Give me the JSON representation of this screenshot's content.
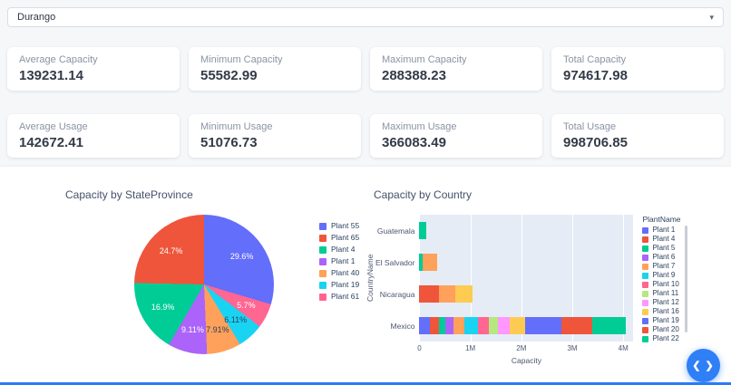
{
  "filter": {
    "selected": "Durango"
  },
  "icons": {
    "chevron_down": "▾"
  },
  "stats": [
    {
      "label": "Average Capacity",
      "value": "139231.14"
    },
    {
      "label": "Minimum Capacity",
      "value": "55582.99"
    },
    {
      "label": "Maximum Capacity",
      "value": "288388.23"
    },
    {
      "label": "Total Capacity",
      "value": "974617.98"
    },
    {
      "label": "Average Usage",
      "value": "142672.41"
    },
    {
      "label": "Minimum Usage",
      "value": "51076.73"
    },
    {
      "label": "Maximum Usage",
      "value": "366083.49"
    },
    {
      "label": "Total Usage",
      "value": "998706.85"
    }
  ],
  "chart_data": [
    {
      "type": "pie",
      "title": "Capacity by StateProvince",
      "labels": [
        "Plant 55",
        "Plant 65",
        "Plant 4",
        "Plant 1",
        "Plant 40",
        "Plant 19",
        "Plant 61"
      ],
      "values": [
        29.6,
        24.7,
        16.9,
        9.11,
        7.91,
        6.11,
        5.7
      ],
      "colors": [
        "#636EFA",
        "#EF553B",
        "#00CC96",
        "#AB63FA",
        "#FFA15A",
        "#19D3F3",
        "#FF6692"
      ],
      "value_format": "percent",
      "legend_position": "right"
    },
    {
      "type": "bar",
      "orientation": "horizontal",
      "stacked": true,
      "title": "Capacity by Country",
      "xlabel": "Capacity",
      "ylabel": "CountryName",
      "legend_title": "PlantName",
      "legend_position": "right",
      "grid": true,
      "categories": [
        "Guatemala",
        "El Salvador",
        "Nicaragua",
        "Mexico"
      ],
      "xlim": [
        0,
        4200000
      ],
      "xticks": [
        "0",
        "1M",
        "2M",
        "3M",
        "4M"
      ],
      "xtick_values": [
        0,
        1000000,
        2000000,
        3000000,
        4000000
      ],
      "series": [
        {
          "name": "Plant 1",
          "color": "#636EFA",
          "values": [
            0,
            0,
            0,
            200000
          ]
        },
        {
          "name": "Plant 4",
          "color": "#EF553B",
          "values": [
            0,
            0,
            380000,
            180000
          ]
        },
        {
          "name": "Plant 5",
          "color": "#00CC96",
          "values": [
            130000,
            60000,
            0,
            130000
          ]
        },
        {
          "name": "Plant 6",
          "color": "#AB63FA",
          "values": [
            0,
            0,
            0,
            160000
          ]
        },
        {
          "name": "Plant 7",
          "color": "#FFA15A",
          "values": [
            0,
            290000,
            330000,
            210000
          ]
        },
        {
          "name": "Plant 9",
          "color": "#19D3F3",
          "values": [
            0,
            0,
            0,
            260000
          ]
        },
        {
          "name": "Plant 10",
          "color": "#FF6692",
          "values": [
            0,
            0,
            0,
            220000
          ]
        },
        {
          "name": "Plant 11",
          "color": "#B6E880",
          "values": [
            0,
            0,
            0,
            180000
          ]
        },
        {
          "name": "Plant 12",
          "color": "#FF97FF",
          "values": [
            0,
            0,
            0,
            240000
          ]
        },
        {
          "name": "Plant 16",
          "color": "#FECB52",
          "values": [
            0,
            0,
            340000,
            300000
          ]
        },
        {
          "name": "Plant 19",
          "color": "#636EFA",
          "values": [
            0,
            0,
            0,
            700000
          ]
        },
        {
          "name": "Plant 20",
          "color": "#EF553B",
          "values": [
            0,
            0,
            0,
            620000
          ]
        },
        {
          "name": "Plant 22",
          "color": "#00CC96",
          "values": [
            0,
            0,
            0,
            650000
          ]
        }
      ]
    }
  ],
  "fab": {
    "glyph": "❮ ❯",
    "icon": "code-chevrons-icon"
  },
  "colors": {
    "accent": "#2F7FF7",
    "plot_background": "#E5ECF6",
    "page_background": "#F6F7F9"
  }
}
